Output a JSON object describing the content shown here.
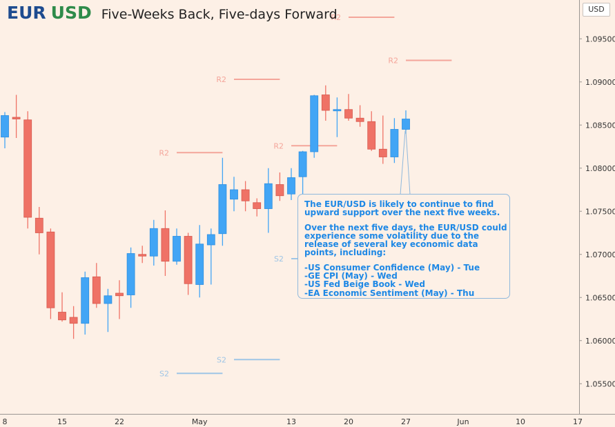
{
  "header": {
    "base": "EUR",
    "quote": "USD",
    "subtitle": "Five-Weeks Back, Five-days Forward",
    "currency_box": "USD"
  },
  "colors": {
    "background": "#fdf0e6",
    "up": "#42a5f5",
    "down": "#ef7266",
    "resistance": "#f4a59a",
    "support": "#9ec5e6",
    "callout_text": "#1e88e5",
    "axis_text": "#333333"
  },
  "callout": {
    "para1": "The EUR/USD is likely to continue to find upward support over the next five weeks.",
    "para2": "Over the next five days, the EUR/USD could experience some volatility due to the release of several key economic data points, including:",
    "items": [
      "-US Consumer Confidence (May) - Tue",
      "-GE CPI (May) - Wed",
      "-US Fed Beige Book - Wed",
      "-EA Economic Sentiment (May) - Thu"
    ]
  },
  "chart_data": {
    "type": "candlestick",
    "title": "EUR USD Five-Weeks Back, Five-days Forward",
    "y_axis": {
      "side": "right",
      "ylim": [
        1.0515,
        1.0995
      ],
      "ticks": [
        1.055,
        1.06,
        1.065,
        1.07,
        1.075,
        1.08,
        1.085,
        1.09,
        1.095
      ],
      "tick_labels": [
        "1.05500",
        "1.06000",
        "1.06500",
        "1.07000",
        "1.07500",
        "1.08000",
        "1.08500",
        "1.09000",
        "1.09500"
      ]
    },
    "x_axis": {
      "ticks": [
        {
          "i": 0,
          "label": "8"
        },
        {
          "i": 5,
          "label": "15"
        },
        {
          "i": 10,
          "label": "22"
        },
        {
          "i": 17,
          "label": "May"
        },
        {
          "i": 25,
          "label": "13"
        },
        {
          "i": 30,
          "label": "20"
        },
        {
          "i": 35,
          "label": "27"
        },
        {
          "i": 40,
          "label": "Jun"
        },
        {
          "i": 45,
          "label": "10"
        },
        {
          "i": 50,
          "label": "17"
        }
      ]
    },
    "candles": [
      {
        "i": 0,
        "o": 1.0836,
        "h": 1.0865,
        "l": 1.0823,
        "c": 1.0861
      },
      {
        "i": 1,
        "o": 1.0859,
        "h": 1.0885,
        "l": 1.0835,
        "c": 1.0857
      },
      {
        "i": 2,
        "o": 1.0856,
        "h": 1.0866,
        "l": 1.073,
        "c": 1.0743
      },
      {
        "i": 3,
        "o": 1.0742,
        "h": 1.0755,
        "l": 1.07,
        "c": 1.0725
      },
      {
        "i": 4,
        "o": 1.0726,
        "h": 1.073,
        "l": 1.0625,
        "c": 1.0638
      },
      {
        "i": 5,
        "o": 1.0633,
        "h": 1.0656,
        "l": 1.0622,
        "c": 1.0624
      },
      {
        "i": 6,
        "o": 1.0627,
        "h": 1.064,
        "l": 1.0602,
        "c": 1.062
      },
      {
        "i": 7,
        "o": 1.062,
        "h": 1.068,
        "l": 1.0607,
        "c": 1.0673
      },
      {
        "i": 8,
        "o": 1.0674,
        "h": 1.069,
        "l": 1.0638,
        "c": 1.0643
      },
      {
        "i": 9,
        "o": 1.0643,
        "h": 1.066,
        "l": 1.061,
        "c": 1.0652
      },
      {
        "i": 10,
        "o": 1.0655,
        "h": 1.067,
        "l": 1.0625,
        "c": 1.0652
      },
      {
        "i": 11,
        "o": 1.0653,
        "h": 1.0708,
        "l": 1.0638,
        "c": 1.0701
      },
      {
        "i": 12,
        "o": 1.07,
        "h": 1.071,
        "l": 1.069,
        "c": 1.0698
      },
      {
        "i": 13,
        "o": 1.0698,
        "h": 1.074,
        "l": 1.0687,
        "c": 1.073
      },
      {
        "i": 14,
        "o": 1.073,
        "h": 1.0751,
        "l": 1.0675,
        "c": 1.0692
      },
      {
        "i": 15,
        "o": 1.0692,
        "h": 1.073,
        "l": 1.0688,
        "c": 1.0721
      },
      {
        "i": 16,
        "o": 1.0721,
        "h": 1.0725,
        "l": 1.0653,
        "c": 1.0666
      },
      {
        "i": 17,
        "o": 1.0665,
        "h": 1.0734,
        "l": 1.065,
        "c": 1.0712
      },
      {
        "i": 18,
        "o": 1.0711,
        "h": 1.073,
        "l": 1.0665,
        "c": 1.0723
      },
      {
        "i": 19,
        "o": 1.0724,
        "h": 1.0812,
        "l": 1.071,
        "c": 1.0781
      },
      {
        "i": 20,
        "o": 1.0764,
        "h": 1.079,
        "l": 1.075,
        "c": 1.0775
      },
      {
        "i": 21,
        "o": 1.0775,
        "h": 1.0785,
        "l": 1.075,
        "c": 1.0762
      },
      {
        "i": 22,
        "o": 1.076,
        "h": 1.0765,
        "l": 1.0744,
        "c": 1.0753
      },
      {
        "i": 23,
        "o": 1.0753,
        "h": 1.08,
        "l": 1.0725,
        "c": 1.0782
      },
      {
        "i": 24,
        "o": 1.0781,
        "h": 1.0795,
        "l": 1.0762,
        "c": 1.0768
      },
      {
        "i": 25,
        "o": 1.077,
        "h": 1.08,
        "l": 1.0763,
        "c": 1.0789
      },
      {
        "i": 26,
        "o": 1.079,
        "h": 1.082,
        "l": 1.0762,
        "c": 1.0819
      },
      {
        "i": 27,
        "o": 1.0819,
        "h": 1.0885,
        "l": 1.0812,
        "c": 1.0884
      },
      {
        "i": 28,
        "o": 1.0885,
        "h": 1.0896,
        "l": 1.0855,
        "c": 1.0867
      },
      {
        "i": 29,
        "o": 1.0867,
        "h": 1.0882,
        "l": 1.0836,
        "c": 1.0868
      },
      {
        "i": 30,
        "o": 1.0868,
        "h": 1.0886,
        "l": 1.0855,
        "c": 1.0858
      },
      {
        "i": 31,
        "o": 1.0858,
        "h": 1.0873,
        "l": 1.0848,
        "c": 1.0854
      },
      {
        "i": 32,
        "o": 1.0854,
        "h": 1.0866,
        "l": 1.082,
        "c": 1.0822
      },
      {
        "i": 33,
        "o": 1.0822,
        "h": 1.0861,
        "l": 1.0805,
        "c": 1.0813
      },
      {
        "i": 34,
        "o": 1.0813,
        "h": 1.0858,
        "l": 1.0806,
        "c": 1.0845
      },
      {
        "i": 35,
        "o": 1.0845,
        "h": 1.0867,
        "l": 1.084,
        "c": 1.0857
      }
    ],
    "levels": [
      {
        "label": "R2",
        "kind": "resistance",
        "value": 1.0818,
        "from": 15,
        "to": 19
      },
      {
        "label": "R2",
        "kind": "resistance",
        "value": 1.0903,
        "from": 20,
        "to": 24
      },
      {
        "label": "R2",
        "kind": "resistance",
        "value": 1.0826,
        "from": 25,
        "to": 29
      },
      {
        "label": "R2",
        "kind": "resistance",
        "value": 1.0975,
        "from": 30,
        "to": 34
      },
      {
        "label": "R2",
        "kind": "resistance",
        "value": 1.0925,
        "from": 35,
        "to": 39
      },
      {
        "label": "S2",
        "kind": "support",
        "value": 1.0562,
        "from": 15,
        "to": 19
      },
      {
        "label": "S2",
        "kind": "support",
        "value": 1.0578,
        "from": 20,
        "to": 24
      },
      {
        "label": "S2",
        "kind": "support",
        "value": 1.0695,
        "from": 25,
        "to": 26
      }
    ],
    "annotation": {
      "anchor_i": 35,
      "anchor_value": 1.0845
    }
  }
}
